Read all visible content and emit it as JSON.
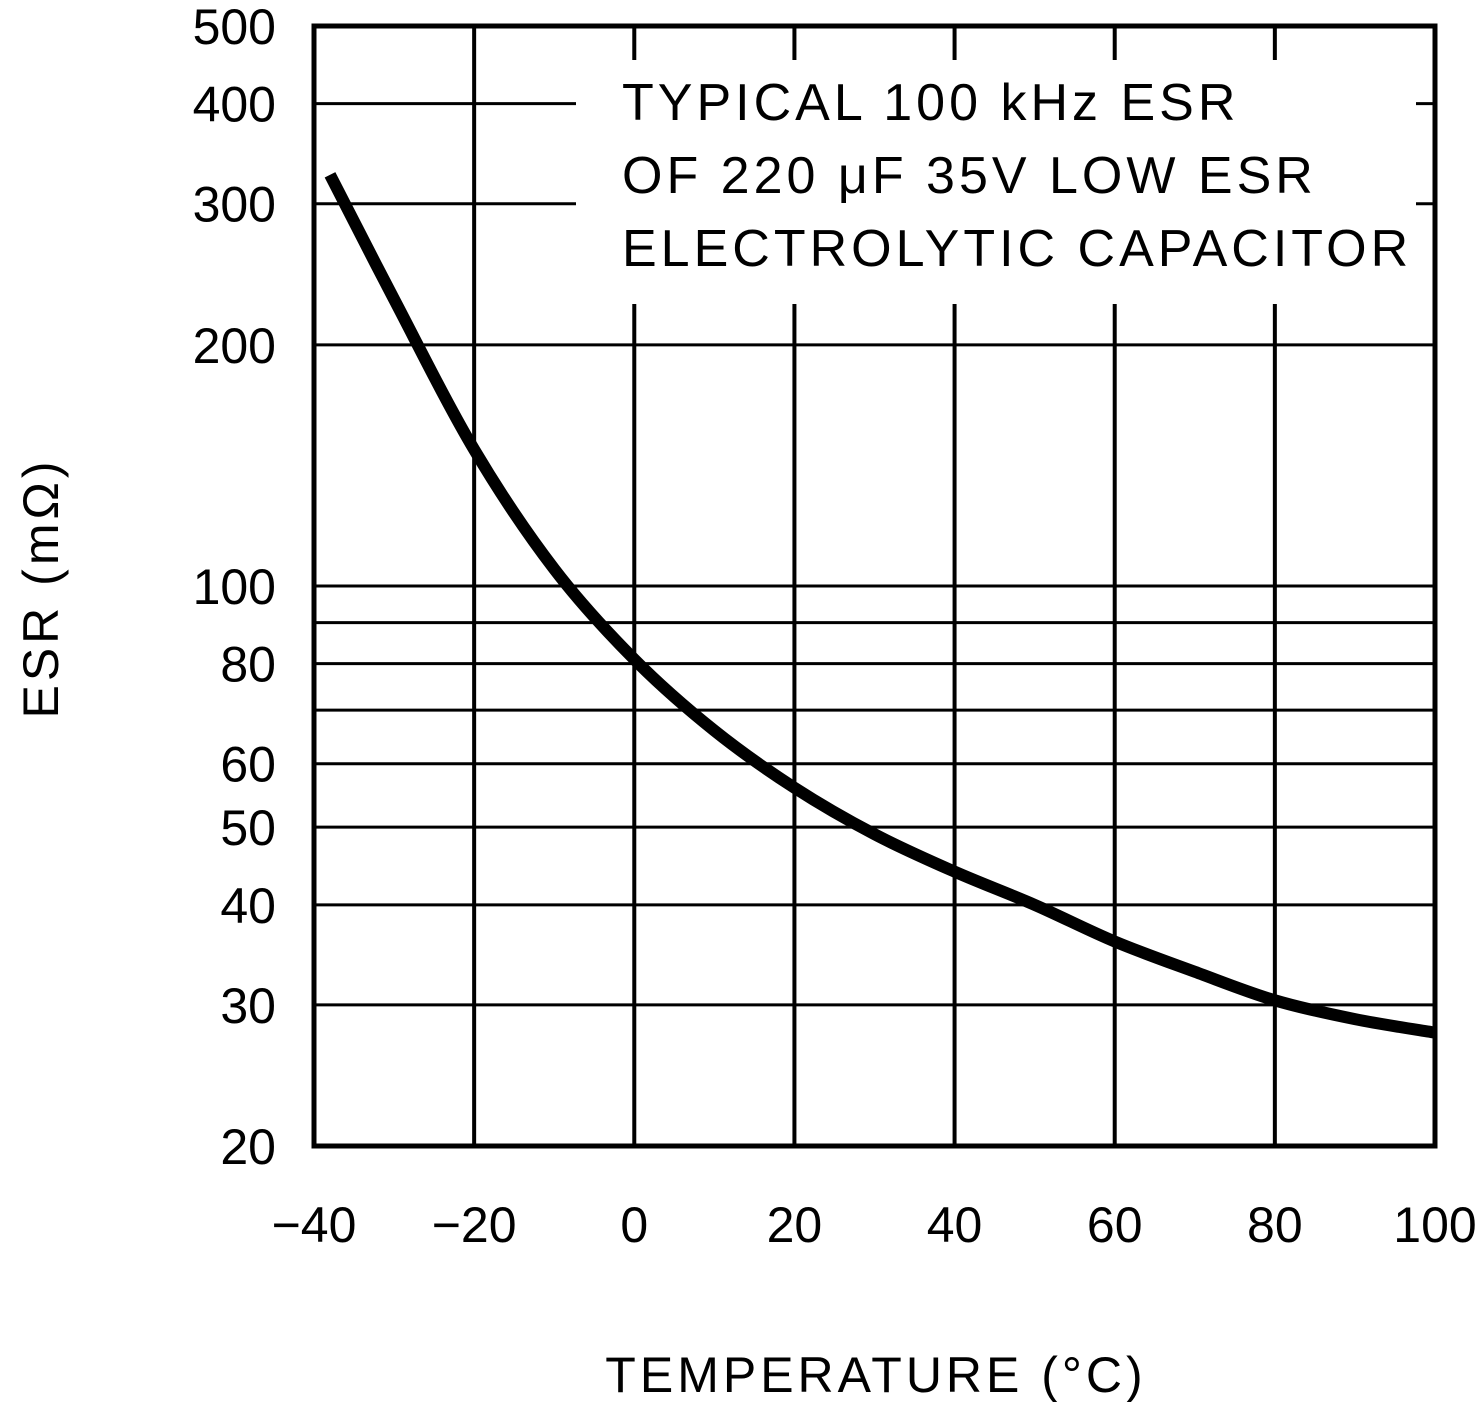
{
  "chart_data": {
    "type": "line",
    "title": "",
    "annotation": [
      "TYPICAL 100 kHz ESR",
      "OF 220 μF 35V LOW ESR",
      "ELECTROLYTIC CAPACITOR"
    ],
    "xlabel": "TEMPERATURE (°C)",
    "ylabel": "ESR (mΩ)",
    "xlim": [
      -40,
      100
    ],
    "ylim": [
      20,
      500
    ],
    "yscale": "log",
    "grid": true,
    "legend": null,
    "x_ticks": [
      -40,
      -20,
      0,
      20,
      40,
      60,
      80,
      100
    ],
    "x_tick_labels": [
      "−40",
      "−20",
      "0",
      "20",
      "40",
      "60",
      "80",
      "100"
    ],
    "y_ticks": [
      20,
      30,
      40,
      50,
      60,
      80,
      100,
      200,
      300,
      400,
      500
    ],
    "y_tick_labels": [
      "20",
      "30",
      "40",
      "50",
      "60",
      "80",
      "100",
      "200",
      "300",
      "400",
      "500"
    ],
    "y_gridlines": [
      30,
      40,
      50,
      60,
      70,
      80,
      90,
      100,
      200,
      300,
      400
    ],
    "series": [
      {
        "name": "Typical ESR",
        "x": [
          -38,
          -30,
          -20,
          -10,
          0,
          10,
          20,
          30,
          40,
          50,
          60,
          70,
          80,
          90,
          100
        ],
        "values": [
          326,
          228,
          148,
          105,
          81,
          66,
          56,
          49,
          44,
          40,
          36,
          33,
          30.4,
          28.8,
          27.7
        ]
      }
    ]
  },
  "colors": {
    "ink": "#000000",
    "background": "#ffffff"
  }
}
